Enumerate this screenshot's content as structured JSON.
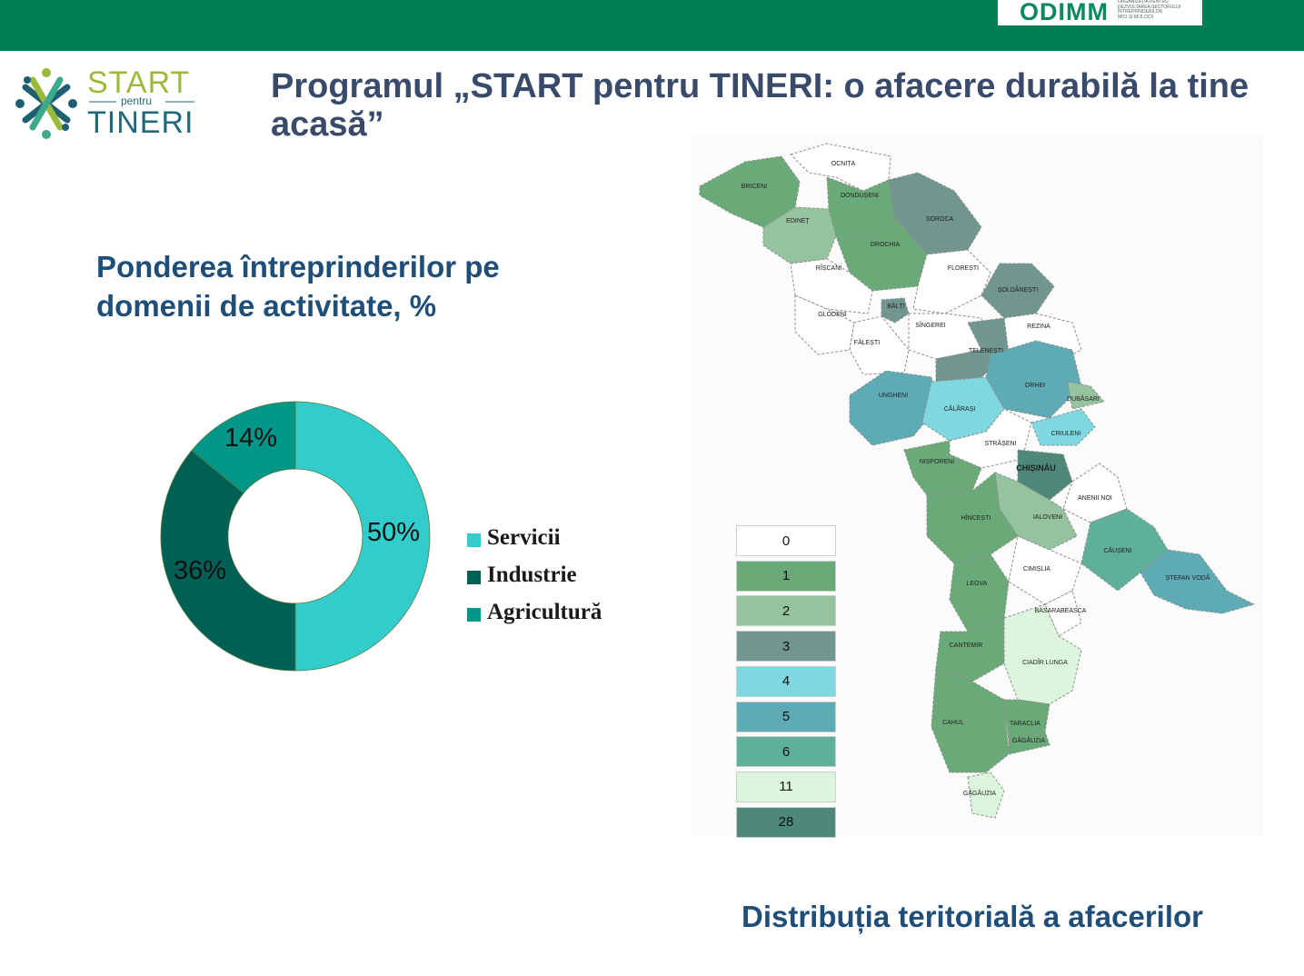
{
  "header": {
    "bar_color": "#007f52",
    "odimm": {
      "logo_text": "ODIMM",
      "tagline_lines": [
        "ORGANIZAȚIA PENTRU",
        "DEZVOLTAREA SECTORULUI",
        "ÎNTREPRINDERILOR",
        "MICI ȘI MIJLOCII"
      ]
    }
  },
  "logo": {
    "start": "START",
    "pentru": "pentru",
    "tineri": "TINERI"
  },
  "title": "Programul „START pentru TINERI: o afacere durabilă la tine acasă”",
  "chart_data": {
    "type": "donut",
    "title": "Ponderea întreprinderilor pe domenii de activitate, %",
    "categories": [
      "Servicii",
      "Industrie",
      "Agricultură"
    ],
    "values": [
      50,
      36,
      14
    ],
    "value_labels": [
      "50%",
      "36%",
      "14%"
    ],
    "colors": [
      "#33cccc",
      "#006055",
      "#009688"
    ],
    "legend_position": "right"
  },
  "map": {
    "caption": "Distribuția teritorială a  afacerilor",
    "legend": [
      {
        "label": "0",
        "color": "#ffffff"
      },
      {
        "label": "1",
        "color": "#6aaa78"
      },
      {
        "label": "2",
        "color": "#95c39e"
      },
      {
        "label": "3",
        "color": "#71958f"
      },
      {
        "label": "4",
        "color": "#7fd8e0"
      },
      {
        "label": "5",
        "color": "#5eabb5"
      },
      {
        "label": "6",
        "color": "#5fb09b"
      },
      {
        "label": "11",
        "color": "#dcf6dd"
      },
      {
        "label": "28",
        "color": "#4e8878"
      }
    ],
    "districts": [
      {
        "name": "OCNIȚA",
        "value": "0"
      },
      {
        "name": "BRICENI",
        "value": "1"
      },
      {
        "name": "DONDUȘENI",
        "value": "1"
      },
      {
        "name": "EDINEȚ",
        "value": "2"
      },
      {
        "name": "SOROCA",
        "value": "3"
      },
      {
        "name": "DROCHIA",
        "value": "1"
      },
      {
        "name": "RÎȘCANI",
        "value": "0"
      },
      {
        "name": "FLOREȘTI",
        "value": "0"
      },
      {
        "name": "ȘOLDĂNEȘTI",
        "value": "3"
      },
      {
        "name": "GLODENI",
        "value": "0"
      },
      {
        "name": "BĂLȚI",
        "value": "3"
      },
      {
        "name": "SÎNGEREI",
        "value": "0"
      },
      {
        "name": "REZINA",
        "value": "0"
      },
      {
        "name": "FĂLEȘTI",
        "value": "0"
      },
      {
        "name": "TELENEȘTI",
        "value": "3"
      },
      {
        "name": "UNGHENI",
        "value": "5"
      },
      {
        "name": "ORHEI",
        "value": "5"
      },
      {
        "name": "CĂLĂRAȘI",
        "value": "4"
      },
      {
        "name": "DUBĂSARI",
        "value": "2"
      },
      {
        "name": "CRIULENI",
        "value": "4"
      },
      {
        "name": "STRĂȘENI",
        "value": "0"
      },
      {
        "name": "NISPORENI",
        "value": "1"
      },
      {
        "name": "CHIȘINĂU",
        "value": "28"
      },
      {
        "name": "ANENII NOI",
        "value": "0"
      },
      {
        "name": "IALOVENI",
        "value": "2"
      },
      {
        "name": "HÎNCEȘTI",
        "value": "1"
      },
      {
        "name": "CĂUȘENI",
        "value": "6"
      },
      {
        "name": "CIMIȘLIA",
        "value": "0"
      },
      {
        "name": "ȘTEFAN VODĂ",
        "value": "5"
      },
      {
        "name": "LEOVA",
        "value": "1"
      },
      {
        "name": "BASARABEASCA",
        "value": "0"
      },
      {
        "name": "CANTEMIR",
        "value": "1"
      },
      {
        "name": "CIADÎR LUNGA",
        "value": "11"
      },
      {
        "name": "CAHUL",
        "value": "1"
      },
      {
        "name": "TARACLIA",
        "value": "1"
      },
      {
        "name": "GĂGĂUZIA",
        "value": "1"
      },
      {
        "name": "GĂGĂUZIA",
        "value": "11"
      }
    ]
  }
}
